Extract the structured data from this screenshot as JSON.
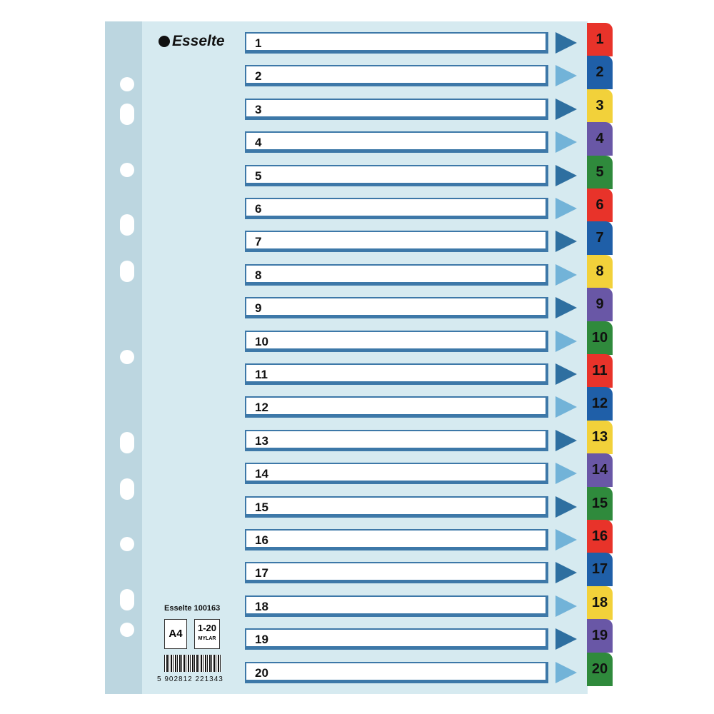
{
  "brand": "Esselte",
  "product_code": "Esselte 100163",
  "size_badge": "A4",
  "range_badge": "1-20",
  "material_badge": "MYLAR",
  "barcode_number": "5 902812 221343",
  "rows": [
    "1",
    "2",
    "3",
    "4",
    "5",
    "6",
    "7",
    "8",
    "9",
    "10",
    "11",
    "12",
    "13",
    "14",
    "15",
    "16",
    "17",
    "18",
    "19",
    "20"
  ],
  "tab_colors": [
    "#e8332a",
    "#1f5fa8",
    "#f2d13a",
    "#6957a6",
    "#2f8a3c"
  ]
}
